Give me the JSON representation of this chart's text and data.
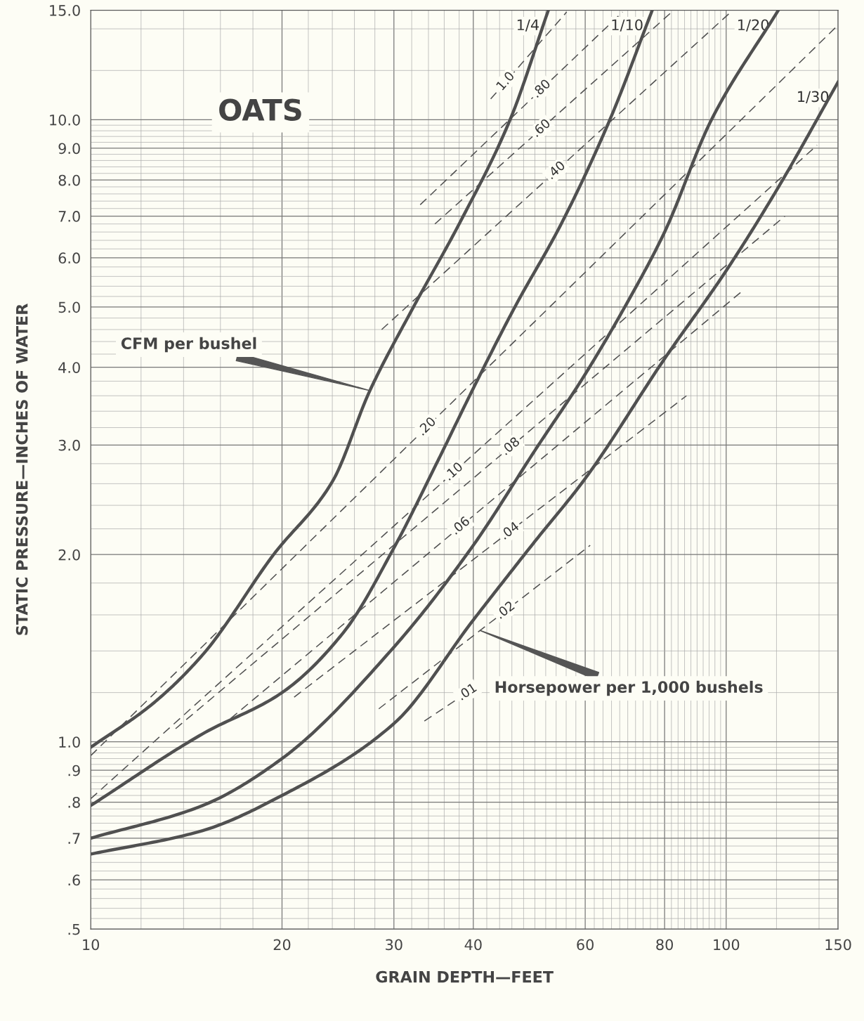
{
  "chart_data": {
    "type": "line",
    "xlabel": "GRAIN DEPTH—FEET",
    "ylabel": "STATIC PRESSURE—INCHES OF WATER",
    "log": "xy",
    "grid": true,
    "legend": false,
    "marker": "none",
    "xlim": [
      10,
      150
    ],
    "ylim": [
      0.5,
      15
    ],
    "xticks": [
      10,
      20,
      30,
      40,
      60,
      80,
      100,
      150
    ],
    "yticks": [
      {
        "value": 0.5,
        "label": ".5"
      },
      {
        "value": 0.6,
        "label": ".6"
      },
      {
        "value": 0.7,
        "label": ".7"
      },
      {
        "value": 0.8,
        "label": ".8"
      },
      {
        "value": 0.9,
        "label": ".9"
      },
      {
        "value": 1.0,
        "label": "1.0"
      },
      {
        "value": 2.0,
        "label": "2.0"
      },
      {
        "value": 3.0,
        "label": "3.0"
      },
      {
        "value": 4.0,
        "label": "4.0"
      },
      {
        "value": 5.0,
        "label": "5.0"
      },
      {
        "value": 6.0,
        "label": "6.0"
      },
      {
        "value": 7.0,
        "label": "7.0"
      },
      {
        "value": 8.0,
        "label": "8.0"
      },
      {
        "value": 9.0,
        "label": "9.0"
      },
      {
        "value": 10.0,
        "label": "10.0"
      },
      {
        "value": 15.0,
        "label": "15.0"
      }
    ],
    "series": [
      {
        "name": "1/4",
        "color": "#505050",
        "line_style": "solid",
        "x": [
          10,
          12.5,
          15,
          19.4,
          24,
          27.5,
          32.2,
          38,
          45.7,
          52.5
        ],
        "values": [
          0.98,
          1.15,
          1.38,
          2.0,
          2.62,
          3.67,
          5.0,
          6.8,
          10,
          15
        ]
      },
      {
        "name": "1/10",
        "color": "#505050",
        "line_style": "solid",
        "x": [
          10,
          15,
          20,
          25,
          30,
          35,
          40,
          46.5,
          55,
          65.6,
          76.5
        ],
        "values": [
          0.79,
          1.03,
          1.2,
          1.5,
          2.05,
          2.8,
          3.7,
          5.0,
          6.8,
          10,
          15
        ]
      },
      {
        "name": "1/20",
        "color": "#505050",
        "line_style": "solid",
        "x": [
          10,
          15,
          20,
          30,
          40,
          50,
          60,
          70,
          80,
          94.8,
          120.8
        ],
        "values": [
          0.7,
          0.79,
          0.94,
          1.42,
          2.07,
          2.94,
          3.9,
          5.1,
          6.6,
          10,
          15
        ]
      },
      {
        "name": "1/30",
        "color": "#505050",
        "line_style": "solid",
        "x": [
          10,
          15,
          20,
          30,
          40,
          50,
          60,
          80,
          100,
          120,
          150
        ],
        "values": [
          0.66,
          0.72,
          0.82,
          1.07,
          1.57,
          2.1,
          2.65,
          4.13,
          5.72,
          7.7,
          11.5
        ]
      },
      {
        "name": "1.0",
        "color": "#505050",
        "line_style": "dashed",
        "x": [
          42.6,
          56.1
        ],
        "values": [
          10.8,
          14.9
        ]
      },
      {
        "name": ".80",
        "color": "#505050",
        "line_style": "dashed",
        "x": [
          33.0,
          68.7
        ],
        "values": [
          7.3,
          14.9
        ]
      },
      {
        "name": ".60",
        "color": "#505050",
        "line_style": "dashed",
        "x": [
          34.8,
          82.1
        ],
        "values": [
          6.8,
          14.9
        ]
      },
      {
        "name": ".40",
        "color": "#505050",
        "line_style": "dashed",
        "x": [
          28.7,
          101.7
        ],
        "values": [
          4.6,
          14.9
        ]
      },
      {
        "name": ".20",
        "color": "#505050",
        "line_style": "dashed",
        "x": [
          10,
          150
        ],
        "values": [
          0.95,
          14.2
        ]
      },
      {
        "name": ".10",
        "color": "#505050",
        "line_style": "dashed",
        "x": [
          10,
          139
        ],
        "values": [
          0.81,
          9.1
        ]
      },
      {
        "name": ".08",
        "color": "#505050",
        "line_style": "dashed",
        "x": [
          13.6,
          123.7
        ],
        "values": [
          1.05,
          7.0
        ]
      },
      {
        "name": ".06",
        "color": "#505050",
        "line_style": "dashed",
        "x": [
          16.6,
          105.9
        ],
        "values": [
          1.09,
          5.3
        ]
      },
      {
        "name": ".04",
        "color": "#505050",
        "line_style": "dashed",
        "x": [
          20.9,
          86.6
        ],
        "values": [
          1.18,
          3.6
        ]
      },
      {
        "name": ".02",
        "color": "#505050",
        "line_style": "dashed",
        "x": [
          28.4,
          61.1
        ],
        "values": [
          1.13,
          2.07
        ]
      },
      {
        "name": ".01",
        "color": "#505050",
        "line_style": "dashed",
        "x": [
          33.5,
          37.7
        ],
        "values": [
          1.08,
          1.17
        ]
      }
    ],
    "annotations": [
      "OATS",
      {
        "text": "CFM per bushel",
        "x": 27.5,
        "y": 3.67
      },
      {
        "text": "Horsepower per 1,000 bushels",
        "x": 41,
        "y": 1.51
      }
    ]
  }
}
